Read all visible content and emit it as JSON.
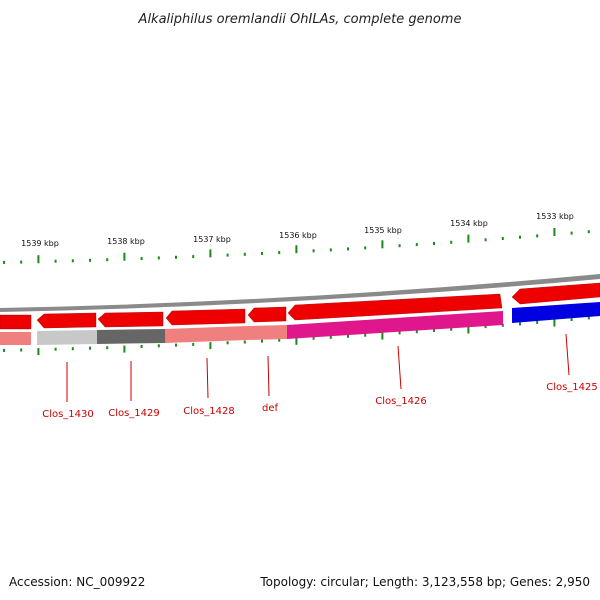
{
  "title": "Alkaliphilus oremlandii OhILAs, complete genome",
  "footer": {
    "accession": "Accession: NC_009922",
    "topology": "Topology: circular; Length: 3,123,558 bp; Genes: 2,950"
  },
  "colors": {
    "forward_gene": "#ee0000",
    "backbone": "#888888",
    "tick": "#1a8a1a",
    "label": "#cc0000",
    "cog_light_gray": "#c8c8c8",
    "cog_dark_gray": "#666666",
    "cog_light_red": "#f08080",
    "cog_magenta": "#e0168c",
    "cog_blue": "#0000e0"
  },
  "scale_labels": [
    "1539 kbp",
    "1538 kbp",
    "1537 kbp",
    "1536 kbp",
    "1535 kbp",
    "1534 kbp",
    "1533 kbp"
  ],
  "gene_labels": [
    "Clos_1430",
    "Clos_1429",
    "Clos_1428",
    "def",
    "Clos_1426",
    "Clos_1425"
  ]
}
